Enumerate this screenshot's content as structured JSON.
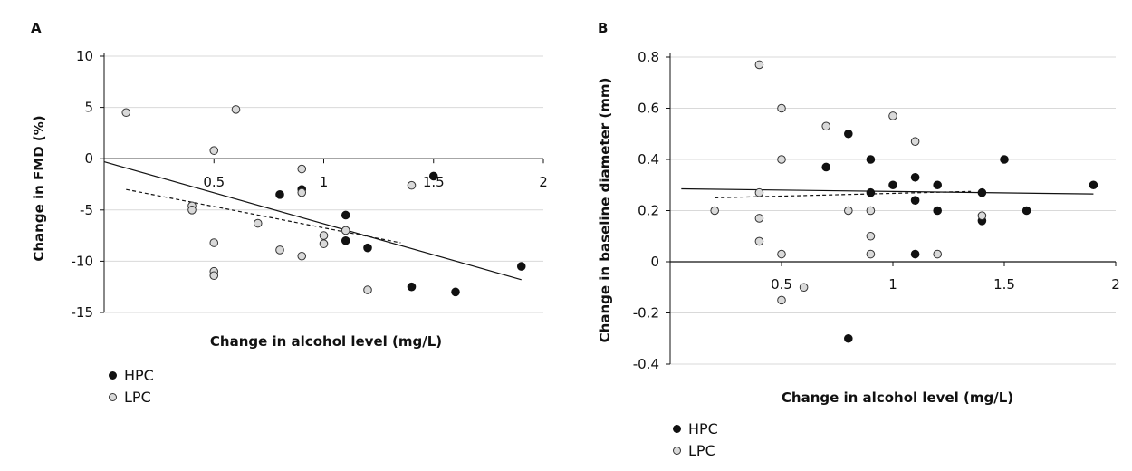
{
  "panels": [
    {
      "label": "A",
      "legend": [
        {
          "name": "HPC",
          "marker": "filled"
        },
        {
          "name": "LPC",
          "marker": "open"
        }
      ]
    },
    {
      "label": "B",
      "legend": [
        {
          "name": "HPC",
          "marker": "filled"
        },
        {
          "name": "LPC",
          "marker": "open"
        }
      ]
    }
  ],
  "colors": {
    "hpc_fill": "#111111",
    "lpc_fill": "#d9d9d9",
    "marker_stroke": "#333333",
    "gridline": "#d9d9d9",
    "axis": "#111111"
  },
  "chart_data": [
    {
      "type": "scatter",
      "title": "",
      "xlabel": "Change in alcohol level (mg/L)",
      "ylabel": "Change in FMD (%)",
      "xlim": [
        0,
        2
      ],
      "ylim": [
        -15,
        10
      ],
      "x_ticks": [
        0.5,
        1,
        1.5,
        2
      ],
      "x_tick_labels": [
        "0.5",
        "1",
        "1.5",
        "2"
      ],
      "y_ticks": [
        10,
        5,
        0,
        -5,
        -10,
        -15
      ],
      "y_tick_labels": [
        "10",
        "5",
        "0",
        "-5",
        "-10",
        "-15"
      ],
      "grid": "horizontal",
      "legend_position": "bottom-left",
      "series": [
        {
          "name": "HPC",
          "marker": "filled",
          "points": [
            [
              0.8,
              -3.5
            ],
            [
              0.9,
              -3
            ],
            [
              1.1,
              -5.5
            ],
            [
              1.1,
              -8
            ],
            [
              1.2,
              -8.7
            ],
            [
              1.4,
              -12.5
            ],
            [
              1.5,
              -1.7
            ],
            [
              1.6,
              -13
            ],
            [
              1.9,
              -10.5
            ]
          ]
        },
        {
          "name": "LPC",
          "marker": "open",
          "points": [
            [
              0.1,
              4.5
            ],
            [
              0.4,
              -4.6
            ],
            [
              0.4,
              -5
            ],
            [
              0.5,
              0.8
            ],
            [
              0.5,
              -8.2
            ],
            [
              0.5,
              -11
            ],
            [
              0.5,
              -11.4
            ],
            [
              0.6,
              4.8
            ],
            [
              0.7,
              -6.3
            ],
            [
              0.8,
              -8.9
            ],
            [
              0.9,
              -1
            ],
            [
              0.9,
              -3.3
            ],
            [
              0.9,
              -9.5
            ],
            [
              1.0,
              -7.5
            ],
            [
              1.0,
              -8.3
            ],
            [
              1.1,
              -7
            ],
            [
              1.2,
              -12.8
            ],
            [
              1.4,
              -2.6
            ]
          ]
        }
      ],
      "trendlines": [
        {
          "style": "solid",
          "from": [
            0.0,
            -0.3
          ],
          "to": [
            1.9,
            -11.8
          ]
        },
        {
          "style": "dashed",
          "from": [
            0.1,
            -3.0
          ],
          "to": [
            1.35,
            -8.2
          ]
        }
      ]
    },
    {
      "type": "scatter",
      "title": "",
      "xlabel": "Change in alcohol level (mg/L)",
      "ylabel": "Change in baseline diameter (mm)",
      "xlim": [
        0,
        2
      ],
      "ylim": [
        -0.4,
        0.8
      ],
      "x_ticks": [
        0.5,
        1,
        1.5,
        2
      ],
      "x_tick_labels": [
        "0.5",
        "1",
        "1.5",
        "2"
      ],
      "y_ticks": [
        0.8,
        0.6,
        0.4,
        0.2,
        0,
        -0.2,
        -0.4
      ],
      "y_tick_labels": [
        "0.8",
        "0.6",
        "0.4",
        "0.2",
        "0",
        "-0.2",
        "-0.4"
      ],
      "grid": "horizontal",
      "legend_position": "bottom-left",
      "series": [
        {
          "name": "HPC",
          "marker": "filled",
          "points": [
            [
              0.7,
              0.37
            ],
            [
              0.8,
              0.5
            ],
            [
              0.8,
              -0.3
            ],
            [
              0.9,
              0.4
            ],
            [
              0.9,
              0.27
            ],
            [
              1.0,
              0.3
            ],
            [
              1.1,
              0.33
            ],
            [
              1.1,
              0.24
            ],
            [
              1.1,
              0.03
            ],
            [
              1.2,
              0.3
            ],
            [
              1.2,
              0.2
            ],
            [
              1.4,
              0.27
            ],
            [
              1.4,
              0.16
            ],
            [
              1.5,
              0.4
            ],
            [
              1.6,
              0.2
            ],
            [
              1.9,
              0.3
            ]
          ]
        },
        {
          "name": "LPC",
          "marker": "open",
          "points": [
            [
              0.2,
              0.2
            ],
            [
              0.4,
              0.77
            ],
            [
              0.4,
              0.27
            ],
            [
              0.4,
              0.17
            ],
            [
              0.4,
              0.08
            ],
            [
              0.5,
              0.6
            ],
            [
              0.5,
              0.4
            ],
            [
              0.5,
              0.03
            ],
            [
              0.5,
              -0.15
            ],
            [
              0.6,
              -0.1
            ],
            [
              0.7,
              0.53
            ],
            [
              0.8,
              0.2
            ],
            [
              0.9,
              0.2
            ],
            [
              0.9,
              0.1
            ],
            [
              0.9,
              0.03
            ],
            [
              1.0,
              0.57
            ],
            [
              1.1,
              0.47
            ],
            [
              1.2,
              0.03
            ],
            [
              1.4,
              0.18
            ]
          ]
        }
      ],
      "trendlines": [
        {
          "style": "solid",
          "from": [
            0.05,
            0.285
          ],
          "to": [
            1.9,
            0.265
          ]
        },
        {
          "style": "dashed",
          "from": [
            0.2,
            0.25
          ],
          "to": [
            1.35,
            0.275
          ]
        }
      ]
    }
  ]
}
